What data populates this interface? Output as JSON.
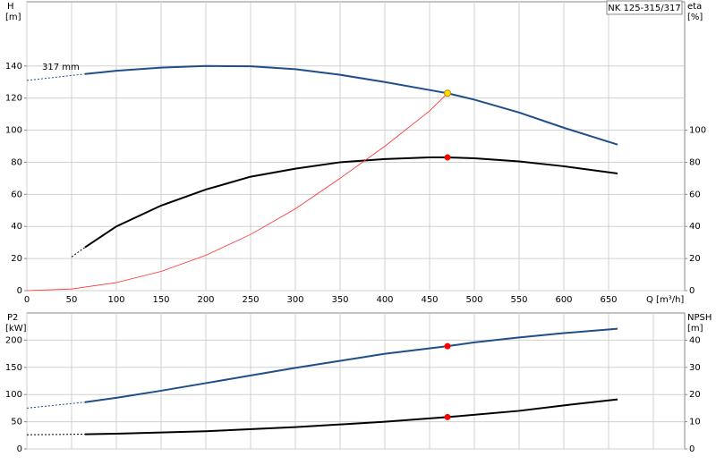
{
  "chart_data": [
    {
      "type": "line",
      "label_box": "NK 125-315/317",
      "ylabel": "H",
      "yunit": "[m]",
      "y2label": "eta",
      "y2unit": "[%]",
      "xlabel": "Q [m³/h]",
      "annotation": "317 mm",
      "xlim": [
        0,
        735
      ],
      "xticks": [
        0,
        50,
        100,
        150,
        200,
        250,
        300,
        350,
        400,
        450,
        500,
        550,
        600,
        650
      ],
      "xtick_labels": true,
      "ylim": [
        0,
        180
      ],
      "yticks": [
        0,
        20,
        40,
        60,
        80,
        100,
        120,
        140
      ],
      "y2lim": [
        0,
        180
      ],
      "y2ticks": [
        0,
        20,
        40,
        60,
        80,
        100
      ],
      "grid": true,
      "series": [
        {
          "color": "#1f4e8c",
          "style": "solid",
          "width": 2,
          "axis": "y",
          "x": [
            65,
            100,
            150,
            200,
            250,
            300,
            350,
            400,
            450,
            470,
            500,
            550,
            600,
            660
          ],
          "values": [
            135,
            137,
            139,
            140,
            139.8,
            138,
            134.5,
            130,
            125,
            123,
            119,
            111,
            101.5,
            91
          ]
        },
        {
          "color": "#1f4e8c",
          "style": "dashed",
          "width": 1,
          "axis": "y",
          "x": [
            0,
            65
          ],
          "values": [
            131,
            135
          ]
        },
        {
          "color": "#000000",
          "style": "solid",
          "width": 2,
          "axis": "y2",
          "x": [
            65,
            100,
            150,
            200,
            250,
            300,
            350,
            400,
            450,
            470,
            500,
            550,
            600,
            660
          ],
          "values": [
            27,
            40,
            53,
            63,
            71,
            76,
            80,
            82,
            83,
            83,
            82.5,
            80.5,
            77.5,
            73
          ]
        },
        {
          "color": "#000000",
          "style": "dashed",
          "width": 1,
          "axis": "y2",
          "x": [
            50,
            65
          ],
          "values": [
            21,
            27
          ]
        },
        {
          "color": "#ff3030",
          "style": "solid",
          "width": 0.8,
          "axis": "y",
          "x": [
            0,
            50,
            100,
            150,
            200,
            250,
            300,
            350,
            400,
            450,
            470
          ],
          "values": [
            0,
            1,
            5,
            12,
            22,
            35,
            51,
            70,
            90,
            112,
            123
          ]
        }
      ],
      "points": [
        {
          "x": 470,
          "y": 123,
          "color": "#ffe000",
          "axis": "y"
        },
        {
          "x": 470,
          "y": 83,
          "color": "#ff0000",
          "axis": "y2"
        }
      ]
    },
    {
      "type": "line",
      "ylabel": "P2",
      "yunit": "[kW]",
      "y2label": "NPSH",
      "y2unit": "[m]",
      "xlim": [
        0,
        735
      ],
      "xticks": [
        0,
        50,
        100,
        150,
        200,
        250,
        300,
        350,
        400,
        450,
        500,
        550,
        600,
        650,
        700
      ],
      "xtick_labels": false,
      "ylim": [
        0,
        250
      ],
      "yticks": [
        0,
        50,
        100,
        150,
        200
      ],
      "y2lim": [
        0,
        50
      ],
      "y2ticks": [
        0,
        10,
        20,
        30,
        40
      ],
      "grid": true,
      "series": [
        {
          "color": "#1f4e8c",
          "style": "solid",
          "width": 2,
          "axis": "y",
          "x": [
            65,
            100,
            150,
            200,
            250,
            300,
            350,
            400,
            470,
            500,
            550,
            600,
            660
          ],
          "values": [
            86,
            94,
            107,
            121,
            135,
            149,
            162,
            175,
            189,
            196,
            205,
            213,
            221
          ]
        },
        {
          "color": "#1f4e8c",
          "style": "dashed",
          "width": 1,
          "axis": "y",
          "x": [
            0,
            65
          ],
          "values": [
            75,
            86
          ]
        },
        {
          "color": "#000000",
          "style": "solid",
          "width": 2,
          "axis": "y2",
          "x": [
            65,
            100,
            200,
            300,
            400,
            470,
            550,
            600,
            660
          ],
          "values": [
            5.4,
            5.6,
            6.5,
            8,
            10,
            11.7,
            14,
            16,
            18.2
          ]
        },
        {
          "color": "#000000",
          "style": "dashed",
          "width": 1,
          "axis": "y2",
          "x": [
            0,
            65
          ],
          "values": [
            5.2,
            5.4
          ]
        }
      ],
      "points": [
        {
          "x": 470,
          "y": 189,
          "color": "#ff0000",
          "axis": "y"
        },
        {
          "x": 470,
          "y": 11.7,
          "color": "#ff0000",
          "axis": "y2"
        }
      ]
    }
  ]
}
